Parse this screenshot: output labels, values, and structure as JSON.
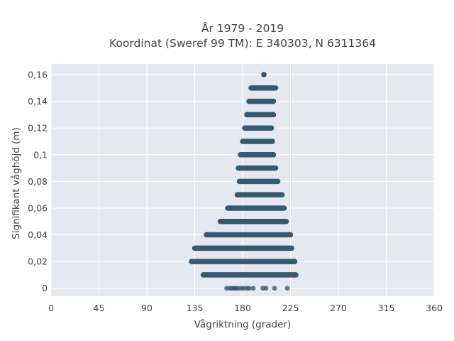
{
  "chart_data": {
    "type": "scatter",
    "title": "År 1979 - 2019",
    "subtitle": "Koordinat (Sweref 99 TM): E 340303, N 6311364",
    "xlabel": "Vågriktning (grader)",
    "ylabel": "Signifikant våghöjd (m)",
    "xlim": [
      0,
      360
    ],
    "ylim": [
      -0.006,
      0.168
    ],
    "x_ticks": [
      {
        "value": 0,
        "label": "0"
      },
      {
        "value": 45,
        "label": "45"
      },
      {
        "value": 90,
        "label": "90"
      },
      {
        "value": 135,
        "label": "135"
      },
      {
        "value": 180,
        "label": "180"
      },
      {
        "value": 225,
        "label": "225"
      },
      {
        "value": 270,
        "label": "270"
      },
      {
        "value": 315,
        "label": "315"
      },
      {
        "value": 360,
        "label": "360"
      }
    ],
    "y_ticks": [
      {
        "value": 0,
        "label": "0"
      },
      {
        "value": 0.02,
        "label": "0,02"
      },
      {
        "value": 0.04,
        "label": "0,04"
      },
      {
        "value": 0.06,
        "label": "0,06"
      },
      {
        "value": 0.08,
        "label": "0,08"
      },
      {
        "value": 0.1,
        "label": "0,1"
      },
      {
        "value": 0.12,
        "label": "0,12"
      },
      {
        "value": 0.14,
        "label": "0,14"
      },
      {
        "value": 0.16,
        "label": "0,16"
      }
    ],
    "grid": true,
    "legend": "none",
    "colors": {
      "marker": "#2e5068",
      "plot_background": "#e5e8f0",
      "grid": "#ffffff"
    },
    "bands": [
      {
        "y": 0.16,
        "x_min": 200,
        "x_max": 200
      },
      {
        "y": 0.15,
        "x_min": 188,
        "x_max": 211
      },
      {
        "y": 0.14,
        "x_min": 186,
        "x_max": 209
      },
      {
        "y": 0.13,
        "x_min": 184,
        "x_max": 209
      },
      {
        "y": 0.12,
        "x_min": 182,
        "x_max": 207
      },
      {
        "y": 0.11,
        "x_min": 180,
        "x_max": 208
      },
      {
        "y": 0.1,
        "x_min": 178,
        "x_max": 209
      },
      {
        "y": 0.09,
        "x_min": 176,
        "x_max": 211
      },
      {
        "y": 0.08,
        "x_min": 177,
        "x_max": 213
      },
      {
        "y": 0.07,
        "x_min": 175,
        "x_max": 217
      },
      {
        "y": 0.06,
        "x_min": 166,
        "x_max": 219
      },
      {
        "y": 0.05,
        "x_min": 159,
        "x_max": 221
      },
      {
        "y": 0.04,
        "x_min": 146,
        "x_max": 225
      },
      {
        "y": 0.03,
        "x_min": 135,
        "x_max": 226
      },
      {
        "y": 0.02,
        "x_min": 132,
        "x_max": 229
      },
      {
        "y": 0.01,
        "x_min": 143,
        "x_max": 230
      }
    ],
    "points": [
      {
        "x": 165,
        "y": 0
      },
      {
        "x": 168,
        "y": 0
      },
      {
        "x": 170,
        "y": 0
      },
      {
        "x": 172,
        "y": 0
      },
      {
        "x": 174,
        "y": 0
      },
      {
        "x": 176,
        "y": 0
      },
      {
        "x": 179,
        "y": 0
      },
      {
        "x": 181,
        "y": 0
      },
      {
        "x": 184,
        "y": 0
      },
      {
        "x": 186,
        "y": 0
      },
      {
        "x": 190,
        "y": 0
      },
      {
        "x": 199,
        "y": 0
      },
      {
        "x": 202,
        "y": 0
      },
      {
        "x": 210,
        "y": 0
      },
      {
        "x": 222,
        "y": 0
      }
    ]
  }
}
